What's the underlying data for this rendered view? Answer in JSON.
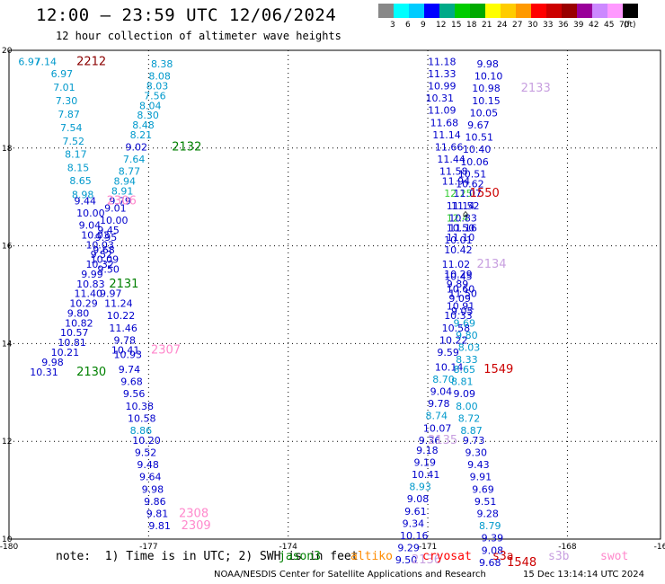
{
  "header": {
    "title": "12:00 — 23:59 UTC 12/06/2024",
    "subtitle": "12 hour collection of altimeter wave heights"
  },
  "colorbar": {
    "unit": "(ft)",
    "ticks": [
      "3",
      "6",
      "9",
      "12",
      "15",
      "18",
      "21",
      "24",
      "27",
      "30",
      "33",
      "36",
      "39",
      "42",
      "45",
      "70"
    ],
    "colors": [
      "#888888",
      "#00ffff",
      "#00ccff",
      "#0000ff",
      "#00aa88",
      "#00cc00",
      "#00aa00",
      "#ffff00",
      "#ffcc00",
      "#ff9900",
      "#ff0000",
      "#cc0000",
      "#990000",
      "#990099",
      "#cc88ff",
      "#ff99ff",
      "#000000"
    ]
  },
  "footer": {
    "note": "note:  1) Time is in UTC; 2) SWH is in feet",
    "legend": [
      {
        "label": "jason3",
        "color": "#008000"
      },
      {
        "label": "altiko",
        "color": "#ff8c00"
      },
      {
        "label": "cryosat",
        "color": "#ff0000"
      },
      {
        "label": "s3a",
        "color": "#cc0000"
      },
      {
        "label": "s3b",
        "color": "#c8a0e0"
      },
      {
        "label": "swot",
        "color": "#ff88cc"
      }
    ],
    "credit": "NOAA/NESDIS Center for Satellite Applications and Research",
    "timestamp": "15 Dec 13:14:14 UTC 2024"
  },
  "chart_data": {
    "type": "scatter",
    "title": "12:00 — 23:59 UTC 12/06/2024",
    "xlim": [
      -180,
      -166
    ],
    "ylim": [
      10,
      20
    ],
    "x_ticks": [
      "-180",
      "-177",
      "-174",
      "-171",
      "-168",
      "-16"
    ],
    "y_ticks": [
      "20",
      "18",
      "16",
      "14",
      "12",
      "10"
    ],
    "colors": {
      "c": "#0099cc",
      "b": "#0000cc",
      "g": "#33cc33",
      "p": "#c8a0e0",
      "m": "#ff88cc",
      "r": "#cc0000",
      "dr": "#8b0000",
      "dg": "#008000"
    },
    "labels": [
      [
        "6.97",
        -179.8,
        19.7,
        "c"
      ],
      [
        "7.14",
        -179.45,
        19.7,
        "c"
      ],
      [
        "2212",
        -178.55,
        19.7,
        "dr",
        1
      ],
      [
        "6.97",
        -179.1,
        19.45,
        "c"
      ],
      [
        "7.01",
        -179.05,
        19.17,
        "c"
      ],
      [
        "7.30",
        -179.0,
        18.9,
        "c"
      ],
      [
        "7.87",
        -178.95,
        18.62,
        "c"
      ],
      [
        "7.54",
        -178.9,
        18.35,
        "c"
      ],
      [
        "7.52",
        -178.85,
        18.07,
        "c"
      ],
      [
        "8.17",
        -178.8,
        17.8,
        "c"
      ],
      [
        "8.15",
        -178.75,
        17.53,
        "c"
      ],
      [
        "8.65",
        -178.7,
        17.26,
        "c"
      ],
      [
        "8.98",
        -178.65,
        16.98,
        "c"
      ],
      [
        "9.44",
        -178.6,
        16.85,
        "b"
      ],
      [
        "10.00",
        -178.55,
        16.6,
        "b"
      ],
      [
        "9.04",
        -178.5,
        16.35,
        "b"
      ],
      [
        "10.03",
        -178.45,
        16.15,
        "b"
      ],
      [
        "10.03",
        -178.35,
        15.95,
        "b"
      ],
      [
        "9.52",
        -178.25,
        15.75,
        "b"
      ],
      [
        "10.32",
        -178.35,
        15.55,
        "b"
      ],
      [
        "9.99",
        -178.45,
        15.35,
        "b"
      ],
      [
        "10.83",
        -178.55,
        15.15,
        "b"
      ],
      [
        "11.40",
        -178.6,
        14.95,
        "b"
      ],
      [
        "10.29",
        -178.7,
        14.75,
        "b"
      ],
      [
        "9.80",
        -178.75,
        14.55,
        "b"
      ],
      [
        "10.82",
        -178.8,
        14.35,
        "b"
      ],
      [
        "10.57",
        -178.9,
        14.15,
        "b"
      ],
      [
        "10.81",
        -178.95,
        13.95,
        "b"
      ],
      [
        "10.21",
        -179.1,
        13.75,
        "b"
      ],
      [
        "9.98",
        -179.3,
        13.55,
        "b"
      ],
      [
        "10.31",
        -179.55,
        13.35,
        "b"
      ],
      [
        "2130",
        -178.55,
        13.35,
        "dg",
        1
      ],
      [
        "8.38",
        -176.95,
        19.65,
        "c"
      ],
      [
        "8.08",
        -177.0,
        19.4,
        "c"
      ],
      [
        "8.03",
        -177.05,
        19.2,
        "c"
      ],
      [
        "7.56",
        -177.1,
        19.0,
        "c"
      ],
      [
        "8.04",
        -177.2,
        18.8,
        "c"
      ],
      [
        "8.30",
        -177.25,
        18.6,
        "c"
      ],
      [
        "8.48",
        -177.35,
        18.4,
        "c"
      ],
      [
        "8.21",
        -177.4,
        18.2,
        "c"
      ],
      [
        "9.02",
        -177.5,
        17.95,
        "b"
      ],
      [
        "2132",
        -176.5,
        17.95,
        "dg",
        1
      ],
      [
        "7.64",
        -177.55,
        17.7,
        "c"
      ],
      [
        "8.77",
        -177.65,
        17.45,
        "c"
      ],
      [
        "8.94",
        -177.75,
        17.25,
        "c"
      ],
      [
        "8.91",
        -177.8,
        17.05,
        "c"
      ],
      [
        "9.79",
        -177.85,
        16.85,
        "b"
      ],
      [
        "2306",
        -177.9,
        16.85,
        "m",
        1
      ],
      [
        "9.01",
        -177.95,
        16.7,
        "b"
      ],
      [
        "10.00",
        -178.05,
        16.45,
        "b"
      ],
      [
        "9.45",
        -178.1,
        16.25,
        "b"
      ],
      [
        "9.95",
        -178.15,
        16.1,
        "b"
      ],
      [
        "9.68",
        -178.2,
        15.85,
        "b"
      ],
      [
        "10.09",
        -178.25,
        15.65,
        "b"
      ],
      [
        "9.50",
        -178.1,
        15.45,
        "b"
      ],
      [
        "2131",
        -177.85,
        15.15,
        "dg",
        1
      ],
      [
        "9.97",
        -178.05,
        14.95,
        "b"
      ],
      [
        "11.24",
        -177.95,
        14.75,
        "b"
      ],
      [
        "10.22",
        -177.9,
        14.5,
        "b"
      ],
      [
        "11.46",
        -177.85,
        14.25,
        "b"
      ],
      [
        "9.78",
        -177.75,
        14.0,
        "b"
      ],
      [
        "10.41",
        -177.8,
        13.8,
        "b"
      ],
      [
        "10.93",
        -177.75,
        13.7,
        "b"
      ],
      [
        "2307",
        -176.95,
        13.8,
        "m",
        1
      ],
      [
        "9.74",
        -177.65,
        13.4,
        "b"
      ],
      [
        "9.68",
        -177.6,
        13.15,
        "b"
      ],
      [
        "9.56",
        -177.55,
        12.9,
        "b"
      ],
      [
        "10.38",
        -177.5,
        12.65,
        "b"
      ],
      [
        "10.58",
        -177.45,
        12.4,
        "b"
      ],
      [
        "8.86",
        -177.4,
        12.15,
        "c"
      ],
      [
        "10.20",
        -177.35,
        11.95,
        "b"
      ],
      [
        "9.52",
        -177.3,
        11.7,
        "b"
      ],
      [
        "9.48",
        -177.25,
        11.45,
        "b"
      ],
      [
        "9.64",
        -177.2,
        11.2,
        "b"
      ],
      [
        "9.98",
        -177.15,
        10.95,
        "b"
      ],
      [
        "9.86",
        -177.1,
        10.7,
        "b"
      ],
      [
        "9.81",
        -177.05,
        10.45,
        "b"
      ],
      [
        "2308",
        -176.35,
        10.45,
        "m",
        1
      ],
      [
        "9.81",
        -177.0,
        10.2,
        "b"
      ],
      [
        "2309",
        -176.3,
        10.2,
        "m",
        1
      ],
      [
        "11.18",
        -171.0,
        19.7,
        "b"
      ],
      [
        "11.33",
        -171.0,
        19.45,
        "b"
      ],
      [
        "10.99",
        -171.0,
        19.2,
        "b"
      ],
      [
        "10.31",
        -171.05,
        18.95,
        "b"
      ],
      [
        "11.09",
        -171.0,
        18.7,
        "b"
      ],
      [
        "11.68",
        -170.95,
        18.45,
        "b"
      ],
      [
        "11.14",
        -170.9,
        18.2,
        "b"
      ],
      [
        "11.66",
        -170.85,
        17.95,
        "b"
      ],
      [
        "11.44",
        -170.8,
        17.7,
        "b"
      ],
      [
        "11.58",
        -170.75,
        17.45,
        "b"
      ],
      [
        "11.94",
        -170.7,
        17.25,
        "b"
      ],
      [
        "12.25",
        -170.65,
        17.0,
        "g"
      ],
      [
        "11.14",
        -170.6,
        16.75,
        "b"
      ],
      [
        "12.4",
        -170.6,
        16.5,
        "g"
      ],
      [
        "11.16",
        -170.55,
        16.3,
        "b"
      ],
      [
        "11.10",
        -170.6,
        16.1,
        "b"
      ],
      [
        "10.42",
        -170.65,
        15.85,
        "b"
      ],
      [
        "11.02",
        -170.7,
        15.55,
        "b"
      ],
      [
        "10.29",
        -170.65,
        15.35,
        "b"
      ],
      [
        "9.89",
        -170.6,
        15.15,
        "b"
      ],
      [
        "11.50",
        -170.55,
        14.95,
        "b"
      ],
      [
        "10.91",
        -170.6,
        14.7,
        "b"
      ],
      [
        "10.33",
        -170.65,
        14.5,
        "b"
      ],
      [
        "10.58",
        -170.7,
        14.25,
        "b"
      ],
      [
        "10.22",
        -170.75,
        14.0,
        "b"
      ],
      [
        "9.59",
        -170.8,
        13.75,
        "b"
      ],
      [
        "10.14",
        -170.85,
        13.45,
        "b"
      ],
      [
        "8.70",
        -170.9,
        13.2,
        "c"
      ],
      [
        "9.04",
        -170.95,
        12.95,
        "b"
      ],
      [
        "9.78",
        -171.0,
        12.7,
        "b"
      ],
      [
        "8.74",
        -171.05,
        12.45,
        "c"
      ],
      [
        "10.07",
        -171.1,
        12.2,
        "b"
      ],
      [
        "9.36",
        -171.2,
        11.95,
        "b"
      ],
      [
        "2135",
        -171.0,
        11.95,
        "p",
        1
      ],
      [
        "9.18",
        -171.25,
        11.75,
        "b"
      ],
      [
        "9.19",
        -171.3,
        11.5,
        "b"
      ],
      [
        "10.41",
        -171.35,
        11.25,
        "b"
      ],
      [
        "8.93",
        -171.4,
        11.0,
        "c"
      ],
      [
        "9.08",
        -171.45,
        10.75,
        "b"
      ],
      [
        "9.61",
        -171.5,
        10.5,
        "b"
      ],
      [
        "9.34",
        -171.55,
        10.25,
        "b"
      ],
      [
        "10.16",
        -171.6,
        10.0,
        "b"
      ],
      [
        "9.29",
        -171.65,
        9.75,
        "b"
      ],
      [
        "9.50",
        -171.7,
        9.5,
        "b"
      ],
      [
        "2136",
        -171.35,
        9.5,
        "p",
        1
      ],
      [
        "9.98",
        -169.95,
        19.65,
        "b"
      ],
      [
        "10.10",
        -170.0,
        19.4,
        "b"
      ],
      [
        "10.98",
        -170.05,
        19.15,
        "b"
      ],
      [
        "2133",
        -169.0,
        19.15,
        "p",
        1
      ],
      [
        "10.15",
        -170.05,
        18.9,
        "b"
      ],
      [
        "10.05",
        -170.1,
        18.65,
        "b"
      ],
      [
        "9.67",
        -170.15,
        18.4,
        "b"
      ],
      [
        "10.51",
        -170.2,
        18.15,
        "b"
      ],
      [
        "10.40",
        -170.25,
        17.9,
        "b"
      ],
      [
        "10.06",
        -170.3,
        17.65,
        "b"
      ],
      [
        "10.51",
        -170.35,
        17.4,
        "b"
      ],
      [
        "10.62",
        -170.4,
        17.2,
        "b"
      ],
      [
        "11.07",
        -170.45,
        17.0,
        "b"
      ],
      [
        "1550",
        -170.1,
        17.0,
        "r",
        1
      ],
      [
        "11.52",
        -170.5,
        16.75,
        "b"
      ],
      [
        "10.83",
        -170.55,
        16.5,
        "b"
      ],
      [
        "10.50",
        -170.6,
        16.3,
        "b"
      ],
      [
        "10.01",
        -170.65,
        16.05,
        "b"
      ],
      [
        "2134",
        -169.95,
        15.55,
        "p",
        1
      ],
      [
        "10.45",
        -170.65,
        15.3,
        "b"
      ],
      [
        "10.60",
        -170.6,
        15.05,
        "b"
      ],
      [
        "9.09",
        -170.55,
        14.85,
        "b"
      ],
      [
        "9.05",
        -170.5,
        14.6,
        "b"
      ],
      [
        "9.69",
        -170.45,
        14.35,
        "c"
      ],
      [
        "9.80",
        -170.4,
        14.1,
        "c"
      ],
      [
        "8.03",
        -170.35,
        13.85,
        "c"
      ],
      [
        "8.33",
        -170.4,
        13.6,
        "c"
      ],
      [
        "8.65",
        -170.45,
        13.4,
        "c"
      ],
      [
        "1549",
        -169.8,
        13.4,
        "r",
        1
      ],
      [
        "8.81",
        -170.5,
        13.15,
        "c"
      ],
      [
        "9.09",
        -170.45,
        12.9,
        "b"
      ],
      [
        "8.00",
        -170.4,
        12.65,
        "c"
      ],
      [
        "8.72",
        -170.35,
        12.4,
        "c"
      ],
      [
        "8.87",
        -170.3,
        12.15,
        "c"
      ],
      [
        "9.73",
        -170.25,
        11.95,
        "b"
      ],
      [
        "9.30",
        -170.2,
        11.7,
        "b"
      ],
      [
        "9.43",
        -170.15,
        11.45,
        "b"
      ],
      [
        "9.91",
        -170.1,
        11.2,
        "b"
      ],
      [
        "9.69",
        -170.05,
        10.95,
        "b"
      ],
      [
        "9.51",
        -170.0,
        10.7,
        "b"
      ],
      [
        "9.28",
        -169.95,
        10.45,
        "b"
      ],
      [
        "8.79",
        -169.9,
        10.2,
        "c"
      ],
      [
        "9.39",
        -169.85,
        9.95,
        "b"
      ],
      [
        "9.08",
        -169.85,
        9.7,
        "b"
      ],
      [
        "9.68",
        -169.9,
        9.45,
        "b"
      ],
      [
        "1548",
        -169.3,
        9.45,
        "r",
        1
      ]
    ]
  }
}
